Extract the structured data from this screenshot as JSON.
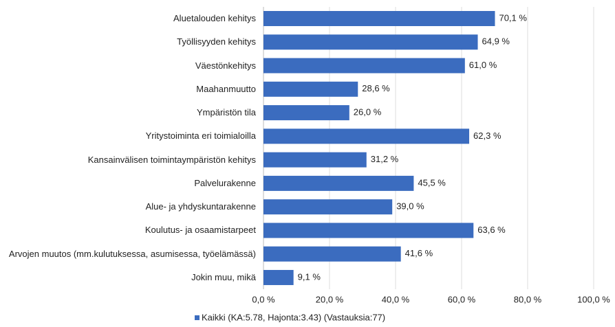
{
  "chart_data": {
    "type": "barh",
    "categories": [
      "Aluetalouden kehitys",
      "Työllisyyden kehitys",
      "Väestönkehitys",
      "Maahanmuutto",
      "Ympäristön tila",
      "Yritystoiminta eri toimialoilla",
      "Kansainvälisen toimintaympäristön kehitys",
      "Palvelurakenne",
      "Alue- ja yhdyskuntarakenne",
      "Koulutus- ja osaamistarpeet",
      "Arvojen muutos (mm.kulutuksessa, asumisessa, työelämässä)",
      "Jokin muu, mikä"
    ],
    "series": [
      {
        "name": "Kaikki (KA:5.78, Hajonta:3.43) (Vastauksia:77)",
        "color": "#3b6cbf",
        "values": [
          70.1,
          64.9,
          61.0,
          28.6,
          26.0,
          62.3,
          31.2,
          45.5,
          39.0,
          63.6,
          41.6,
          9.1
        ],
        "value_labels": [
          "70,1 %",
          "64,9 %",
          "61,0 %",
          "28,6 %",
          "26,0 %",
          "62,3 %",
          "31,2 %",
          "45,5 %",
          "39,0 %",
          "63,6 %",
          "41,6 %",
          "9,1 %"
        ]
      }
    ],
    "xlim": [
      0,
      100
    ],
    "xticks": [
      {
        "value": 0,
        "label": "0,0 %"
      },
      {
        "value": 20,
        "label": "20,0 %"
      },
      {
        "value": 40,
        "label": "40,0 %"
      },
      {
        "value": 60,
        "label": "60,0 %"
      },
      {
        "value": 80,
        "label": "80,0 %"
      },
      {
        "value": 100,
        "label": "100,0 %"
      }
    ],
    "grid": true,
    "legend": "bottom"
  }
}
